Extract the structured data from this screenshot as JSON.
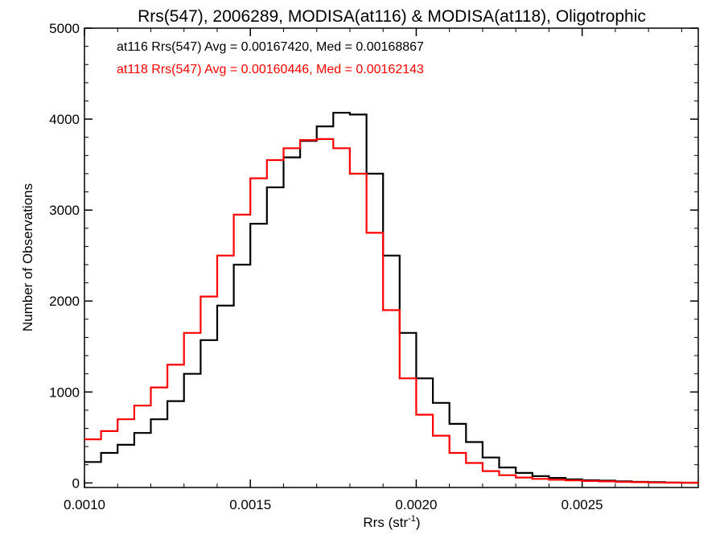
{
  "chart_data": {
    "type": "line",
    "title": "Rrs(547), 2006289, MODISA(at116) & MODISA(at118), Oligotrophic",
    "xlabel_base": "Rrs (str",
    "xlabel_sup": "-1",
    "xlabel_close": ")",
    "ylabel": "Number of Observations",
    "xlim": [
      0.001,
      0.00285
    ],
    "ylim": [
      -50,
      5000
    ],
    "xticks": [
      0.001,
      0.0015,
      0.002,
      0.0025
    ],
    "xtick_labels": [
      "0.0010",
      "0.0015",
      "0.0020",
      "0.0025"
    ],
    "yticks": [
      0,
      1000,
      2000,
      3000,
      4000,
      5000
    ],
    "ytick_labels": [
      "0",
      "1000",
      "2000",
      "3000",
      "4000",
      "5000"
    ],
    "grid": false,
    "annotations": [
      {
        "text": "at116 Rrs(547) Avg = 0.00167420, Med = 0.00168867",
        "color": "#000000"
      },
      {
        "text": "at118 Rrs(547) Avg = 0.00160446, Med = 0.00162143",
        "color": "#ff0000"
      }
    ],
    "x": [
      0.001,
      0.00105,
      0.0011,
      0.00115,
      0.0012,
      0.00125,
      0.0013,
      0.00135,
      0.0014,
      0.00145,
      0.0015,
      0.00155,
      0.0016,
      0.00165,
      0.0017,
      0.00175,
      0.0018,
      0.00185,
      0.0019,
      0.00195,
      0.002,
      0.00205,
      0.0021,
      0.00215,
      0.0022,
      0.00225,
      0.0023,
      0.00235,
      0.0024,
      0.00245,
      0.0025,
      0.00255,
      0.0026,
      0.00265,
      0.0027,
      0.00275,
      0.0028,
      0.00285
    ],
    "series": [
      {
        "name": "at116",
        "color": "#000000",
        "values": [
          230,
          330,
          420,
          550,
          700,
          900,
          1200,
          1570,
          1950,
          2400,
          2850,
          3250,
          3580,
          3760,
          3920,
          4070,
          4050,
          3400,
          2500,
          1650,
          1150,
          880,
          650,
          450,
          280,
          170,
          110,
          75,
          55,
          40,
          30,
          25,
          18,
          12,
          8,
          5,
          3,
          2
        ]
      },
      {
        "name": "at118",
        "color": "#ff0000",
        "values": [
          480,
          570,
          700,
          850,
          1050,
          1300,
          1650,
          2050,
          2500,
          2950,
          3350,
          3550,
          3680,
          3770,
          3780,
          3680,
          3400,
          2750,
          1900,
          1150,
          750,
          520,
          330,
          220,
          130,
          85,
          60,
          45,
          35,
          28,
          22,
          17,
          12,
          8,
          5,
          3,
          2,
          1
        ]
      }
    ]
  }
}
